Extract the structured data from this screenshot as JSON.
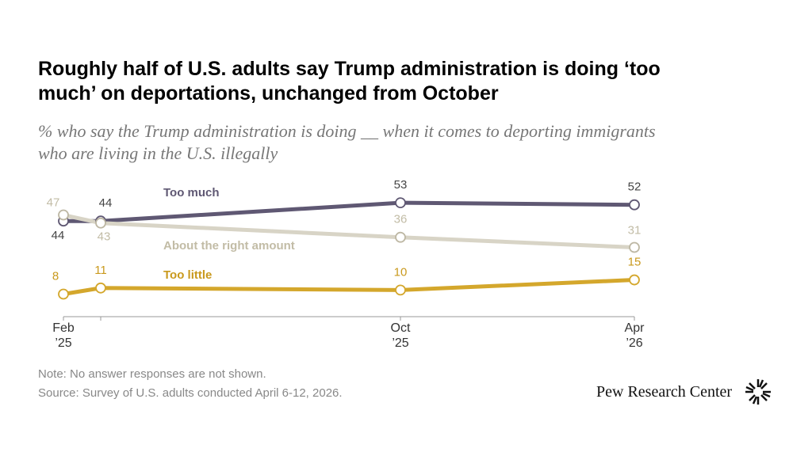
{
  "chart_data": {
    "type": "line",
    "title": "Roughly half of U.S. adults say Trump administration is doing ‘too much’ on deportations, unchanged from October",
    "subtitle": "% who say the Trump administration is doing __ when it comes to deporting immigrants who are living in the U.S. illegally",
    "categories": [
      "Feb\n’25",
      null,
      "Oct\n’25",
      "Apr\n’26"
    ],
    "series": [
      {
        "name": "Too much",
        "color": "#5f5873",
        "values": [
          44,
          44,
          53,
          52
        ]
      },
      {
        "name": "About the right amount",
        "color": "#d8d4c6",
        "values": [
          47,
          43,
          36,
          31
        ]
      },
      {
        "name": "Too little",
        "color": "#d4a72c",
        "values": [
          8,
          11,
          10,
          15
        ]
      }
    ],
    "ylim": [
      0,
      55
    ],
    "note": "Note: No answer responses are not shown.",
    "source": "Source: Survey of U.S. adults conducted April 6-12, 2026.",
    "brand": "Pew Research Center"
  }
}
